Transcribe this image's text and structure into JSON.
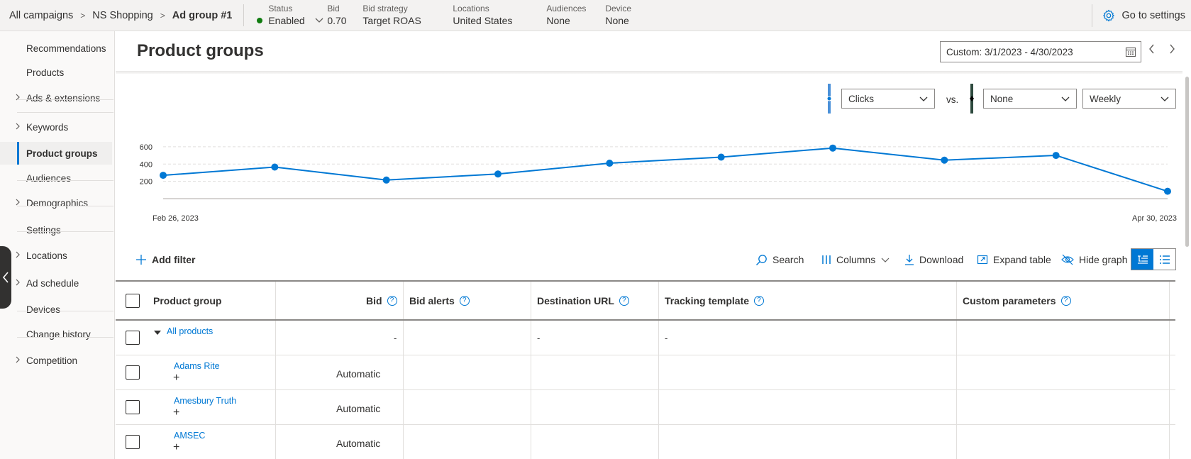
{
  "breadcrumb": {
    "items": [
      "All campaigns",
      "NS Shopping",
      "Ad group #1"
    ],
    "separator": ">"
  },
  "meta": {
    "status_label": "Status",
    "status_value": "Enabled",
    "bid_label": "Bid",
    "bid_value": "0.70",
    "strategy_label": "Bid strategy",
    "strategy_value": "Target ROAS",
    "locations_label": "Locations",
    "locations_value": "United States",
    "audiences_label": "Audiences",
    "audiences_value": "None",
    "device_label": "Device",
    "device_value": "None"
  },
  "settings_link": "Go to settings",
  "sidebar": {
    "items": [
      {
        "label": "Recommendations",
        "chevron": false
      },
      {
        "label": "Products",
        "chevron": false
      },
      {
        "label": "Ads & extensions",
        "chevron": true
      },
      {
        "label": "Keywords",
        "chevron": true
      },
      {
        "label": "Product groups",
        "chevron": false,
        "active": true
      },
      {
        "label": "Audiences",
        "chevron": false
      },
      {
        "label": "Demographics",
        "chevron": true
      },
      {
        "label": "Settings",
        "chevron": false
      },
      {
        "label": "Locations",
        "chevron": true
      },
      {
        "label": "Ad schedule",
        "chevron": true
      },
      {
        "label": "Devices",
        "chevron": false
      },
      {
        "label": "Change history",
        "chevron": false
      },
      {
        "label": "Competition",
        "chevron": true
      }
    ]
  },
  "page_title": "Product groups",
  "date_range": "Custom: 3/1/2023 - 4/30/2023",
  "chart_controls": {
    "metric1": "Clicks",
    "vs_label": "vs.",
    "metric2": "None",
    "granularity": "Weekly"
  },
  "chart_data": {
    "type": "line",
    "x_start_label": "Feb 26, 2023",
    "x_end_label": "Apr 30, 2023",
    "yticks": [
      600,
      400,
      200
    ],
    "ylim": [
      0,
      640
    ],
    "series": [
      {
        "values": [
          270,
          365,
          215,
          285,
          410,
          480,
          585,
          445,
          500,
          85
        ]
      }
    ],
    "color": "#0078d4"
  },
  "toolbar": {
    "add_filter": "Add filter",
    "search": "Search",
    "columns": "Columns",
    "download": "Download",
    "expand": "Expand table",
    "hide_graph": "Hide graph"
  },
  "table": {
    "headers": {
      "product_group": "Product group",
      "bid": "Bid",
      "bid_alerts": "Bid alerts",
      "destination_url": "Destination URL",
      "tracking_template": "Tracking template",
      "custom_parameters": "Custom parameters"
    },
    "root": {
      "name": "All products",
      "bid": "-",
      "destination_url": "-",
      "tracking_template": "-"
    },
    "rows": [
      {
        "name": "Adams Rite",
        "bid": "Automatic"
      },
      {
        "name": "Amesbury Truth",
        "bid": "Automatic"
      },
      {
        "name": "AMSEC",
        "bid": "Automatic"
      }
    ]
  },
  "colors": {
    "accent": "#0078d4",
    "status_enabled": "#107c10",
    "series2_marker": "#2d4a3e"
  }
}
